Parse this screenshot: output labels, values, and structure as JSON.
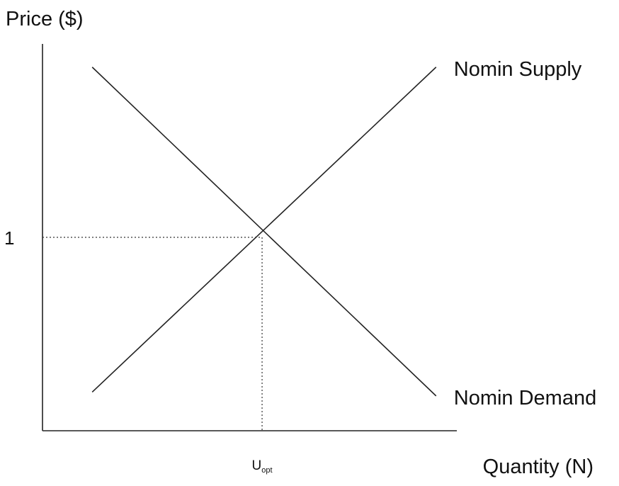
{
  "chart_data": {
    "type": "line",
    "title": "",
    "ylabel": "Price ($)",
    "xlabel": "Quantity (N)",
    "xlim": [
      0,
      10
    ],
    "ylim": [
      0,
      10
    ],
    "grid": false,
    "series": [
      {
        "name": "Nomin Supply",
        "color": "#222222",
        "points": [
          [
            1.2,
            1.0
          ],
          [
            9.5,
            9.4
          ]
        ]
      },
      {
        "name": "Nomin Demand",
        "color": "#222222",
        "points": [
          [
            1.2,
            9.4
          ],
          [
            9.5,
            0.9
          ]
        ]
      }
    ],
    "equilibrium": {
      "x": 5.3,
      "y": 5.0,
      "y_tick_label": "1",
      "x_tick_label_main": "U",
      "x_tick_label_sub": "opt",
      "guide_style": "dotted"
    }
  }
}
